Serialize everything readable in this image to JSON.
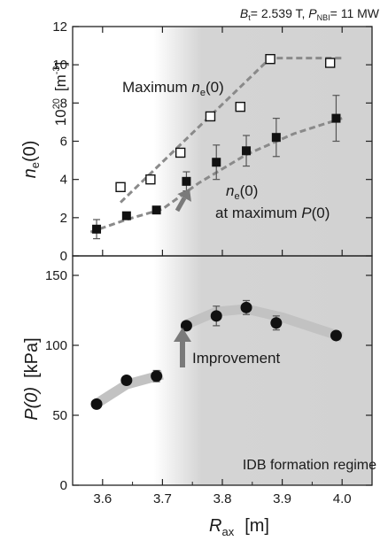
{
  "header": {
    "bt_symbol": "B",
    "bt_sub": "t",
    "bt_value": "= 2.539 T, ",
    "pnbi_symbol": "P",
    "pnbi_sub": "NBI",
    "pnbi_value": "= 11 MW"
  },
  "chart_data": [
    {
      "type": "scatter",
      "panel": "top",
      "ylabel_sym": "n",
      "ylabel_sub": "e",
      "ylabel_tail": "(0)",
      "yunit_prefix": "10",
      "yunit_exp": "20",
      "yunit": "[m",
      "yunit_exp2": "-3",
      "yunit_close": "]",
      "ylim": [
        0,
        12
      ],
      "yticks": [
        "0",
        "2",
        "4",
        "6",
        "8",
        "10",
        "12"
      ],
      "xlim": [
        3.55,
        4.05
      ],
      "series": [
        {
          "name": "Maximum ne(0)",
          "label": "Maximum ",
          "label_sym": "n",
          "label_sub": "e",
          "label_tail": "(0)",
          "marker": "open-square",
          "x": [
            3.63,
            3.68,
            3.73,
            3.78,
            3.83,
            3.88,
            3.98
          ],
          "y": [
            3.6,
            4.0,
            5.4,
            7.3,
            7.8,
            10.3,
            10.1
          ],
          "fit": [
            [
              3.63,
              2.8
            ],
            [
              3.88,
              10.35
            ],
            [
              4.0,
              10.35
            ]
          ]
        },
        {
          "name": "ne(0) at maximum P(0)",
          "label_line1_sym": "n",
          "label_line1_sub": "e",
          "label_line1_tail": "(0)",
          "label_line2": "at maximum ",
          "label_line2_sym": "P",
          "label_line2_tail": "(0)",
          "marker": "filled-square",
          "x": [
            3.59,
            3.64,
            3.69,
            3.74,
            3.79,
            3.84,
            3.89,
            3.99
          ],
          "y": [
            1.4,
            2.1,
            2.4,
            3.9,
            4.9,
            5.5,
            6.2,
            7.2
          ],
          "err": [
            0.5,
            0,
            0,
            0.5,
            0.9,
            0.8,
            1.0,
            1.2
          ],
          "fit": [
            [
              3.58,
              1.25
            ],
            [
              3.64,
              1.9
            ],
            [
              3.7,
              2.45
            ],
            [
              3.76,
              3.8
            ],
            [
              3.84,
              5.3
            ],
            [
              3.92,
              6.4
            ],
            [
              4.0,
              7.2
            ]
          ]
        }
      ]
    },
    {
      "type": "scatter",
      "panel": "bottom",
      "ylabel": "P(0)",
      "yunit": "[kPa]",
      "ylim": [
        0,
        150
      ],
      "yticks": [
        "0",
        "50",
        "100",
        "150"
      ],
      "xlabel_sym": "R",
      "xlabel_sub": "ax",
      "xunit": "[m]",
      "xlim": [
        3.55,
        4.05
      ],
      "xticks": [
        "3.6",
        "3.7",
        "3.8",
        "3.9",
        "4.0"
      ],
      "series": [
        {
          "name": "P(0)",
          "marker": "filled-circle",
          "x": [
            3.59,
            3.64,
            3.69,
            3.74,
            3.79,
            3.84,
            3.89,
            3.99
          ],
          "y": [
            58,
            75,
            78,
            114,
            121,
            127,
            116,
            107
          ],
          "err": [
            0,
            0,
            4,
            0,
            7,
            5,
            5,
            0
          ]
        }
      ],
      "annotations": {
        "improvement": "Improvement",
        "regime": "IDB formation regime"
      },
      "shaded_region_x": [
        3.7,
        4.05
      ]
    }
  ],
  "colors": {
    "shade": "#cfcfcf",
    "fit_line": "#8a8a8a",
    "band": "#c2c2c2",
    "arrow": "#7a7a7a",
    "marker": "#111111",
    "axis": "#222222"
  }
}
